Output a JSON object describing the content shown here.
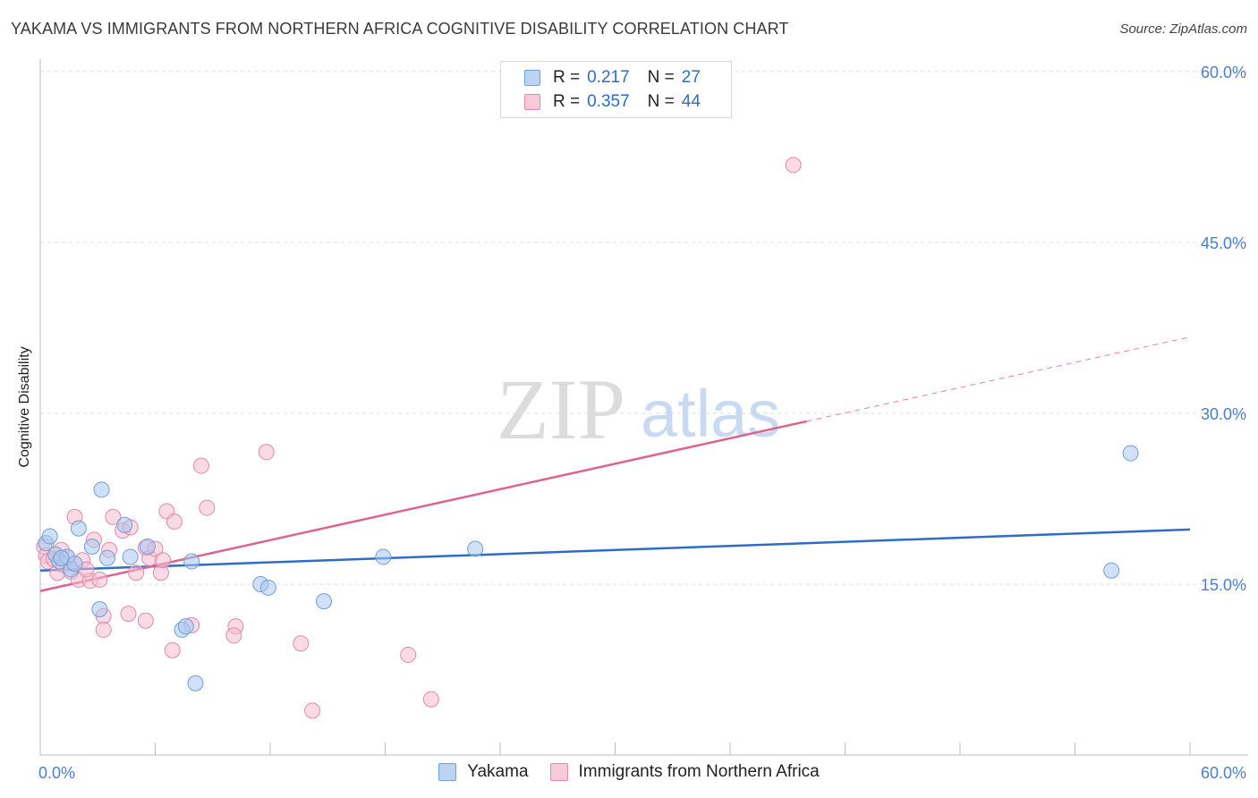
{
  "title": "YAKAMA VS IMMIGRANTS FROM NORTHERN AFRICA COGNITIVE DISABILITY CORRELATION CHART",
  "source": "Source: ZipAtlas.com",
  "watermark": {
    "zip": "ZIP",
    "atlas": "atlas"
  },
  "legend": {
    "series": [
      {
        "name": "Yakama",
        "r_label": "R =",
        "r_value": "0.217",
        "n_label": "N =",
        "n_value": "27"
      },
      {
        "name": "Immigrants from Northern Africa",
        "r_label": "R =",
        "r_value": "0.357",
        "n_label": "N =",
        "n_value": "44"
      }
    ]
  },
  "colors": {
    "blue_fill": "#a9c8f0",
    "blue_stroke": "#6f9fd8",
    "blue_line": "#2f6cc8",
    "pink_fill": "#f6bcd0",
    "pink_stroke": "#e48aa8",
    "pink_line": "#e0608e",
    "grid": "#dddddd",
    "tick_text": "#4a7fd0"
  },
  "chart_data": {
    "type": "scatter",
    "title": "YAKAMA VS IMMIGRANTS FROM NORTHERN AFRICA COGNITIVE DISABILITY CORRELATION CHART",
    "xlabel": "",
    "ylabel": "Cognitive Disability",
    "xlim": [
      0,
      60
    ],
    "ylim": [
      0,
      60
    ],
    "x_tick_labels": [
      "0.0%",
      "60.0%"
    ],
    "y_ticks": [
      15,
      30,
      45,
      60
    ],
    "y_tick_labels": [
      "15.0%",
      "30.0%",
      "45.0%",
      "60.0%"
    ],
    "series": [
      {
        "name": "Yakama",
        "r": 0.217,
        "n": 27,
        "points": [
          [
            0.3,
            18.6
          ],
          [
            0.5,
            19.2
          ],
          [
            0.8,
            17.6
          ],
          [
            1.0,
            17.0
          ],
          [
            1.4,
            17.4
          ],
          [
            1.6,
            16.3
          ],
          [
            1.8,
            16.8
          ],
          [
            2.0,
            19.9
          ],
          [
            2.7,
            18.3
          ],
          [
            3.2,
            23.3
          ],
          [
            3.5,
            17.3
          ],
          [
            4.4,
            20.2
          ],
          [
            4.7,
            17.4
          ],
          [
            5.6,
            18.3
          ],
          [
            7.4,
            11.0
          ],
          [
            7.6,
            11.3
          ],
          [
            7.9,
            17.0
          ],
          [
            8.1,
            6.3
          ],
          [
            11.5,
            15.0
          ],
          [
            11.9,
            14.7
          ],
          [
            14.8,
            13.5
          ],
          [
            17.9,
            17.4
          ],
          [
            22.7,
            18.1
          ],
          [
            55.9,
            16.2
          ],
          [
            56.9,
            26.5
          ],
          [
            3.1,
            12.8
          ],
          [
            1.1,
            17.3
          ]
        ],
        "trend": {
          "x": [
            0,
            60
          ],
          "y": [
            16.2,
            19.8
          ]
        }
      },
      {
        "name": "Immigrants from Northern Africa",
        "r": 0.357,
        "n": 44,
        "points": [
          [
            0.2,
            18.3
          ],
          [
            0.3,
            17.5
          ],
          [
            0.4,
            17.0
          ],
          [
            0.7,
            17.2
          ],
          [
            0.9,
            16.0
          ],
          [
            1.2,
            16.7
          ],
          [
            1.4,
            17.4
          ],
          [
            1.6,
            16.1
          ],
          [
            1.8,
            20.9
          ],
          [
            2.0,
            15.4
          ],
          [
            2.2,
            17.1
          ],
          [
            2.6,
            15.3
          ],
          [
            2.8,
            18.9
          ],
          [
            3.1,
            15.4
          ],
          [
            3.3,
            12.2
          ],
          [
            3.3,
            11.0
          ],
          [
            3.6,
            18.0
          ],
          [
            3.8,
            20.9
          ],
          [
            4.3,
            19.7
          ],
          [
            4.7,
            20.0
          ],
          [
            4.6,
            12.4
          ],
          [
            5.0,
            16.0
          ],
          [
            5.5,
            18.2
          ],
          [
            5.5,
            11.8
          ],
          [
            5.7,
            17.3
          ],
          [
            6.0,
            18.1
          ],
          [
            6.3,
            16.0
          ],
          [
            6.4,
            17.1
          ],
          [
            6.6,
            21.4
          ],
          [
            6.9,
            9.2
          ],
          [
            7.0,
            20.5
          ],
          [
            7.9,
            11.4
          ],
          [
            8.4,
            25.4
          ],
          [
            8.7,
            21.7
          ],
          [
            10.2,
            11.3
          ],
          [
            10.1,
            10.5
          ],
          [
            11.8,
            26.6
          ],
          [
            13.6,
            9.8
          ],
          [
            14.2,
            3.9
          ],
          [
            19.2,
            8.8
          ],
          [
            20.4,
            4.9
          ],
          [
            39.3,
            51.8
          ],
          [
            1.1,
            18.0
          ],
          [
            2.4,
            16.3
          ]
        ],
        "trend": {
          "x": [
            0,
            40
          ],
          "y": [
            14.4,
            29.3
          ]
        },
        "trend_dashed": {
          "x": [
            40,
            60
          ],
          "y": [
            29.3,
            36.7
          ]
        }
      }
    ]
  }
}
